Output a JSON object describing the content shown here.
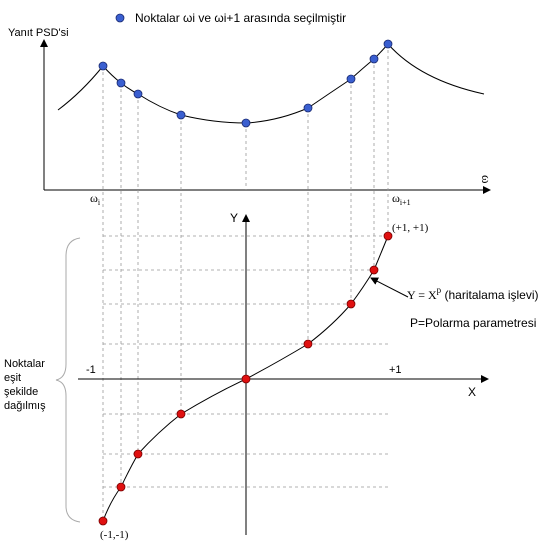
{
  "legend": {
    "text": "Noktalar ωi ve ωi+1 arasında seçilmiştir",
    "marker_color": "#3a5fd0"
  },
  "top_plot": {
    "y_label": "Yanıt PSD'si",
    "x_label": "ω",
    "omega_i": "ω",
    "omega_i_sub": "i",
    "omega_i1": "ω",
    "omega_i1_sub": "i+1"
  },
  "bottom_plot": {
    "y_label": "Y",
    "x_label": "X",
    "minus_one": "-1",
    "plus_one": "+1",
    "corner_top": "(+1, +1)",
    "corner_bottom": "(-1,-1)",
    "mapping_text": "Y = X",
    "mapping_exp": "p",
    "mapping_note": " (haritalama işlevi)",
    "polar_text": "P=Polarma parametresi",
    "point_color": "#e01010"
  },
  "left_note": {
    "line1": "Noktalar",
    "line2": "eşit",
    "line3": "şekilde",
    "line4": "dağılmış"
  }
}
